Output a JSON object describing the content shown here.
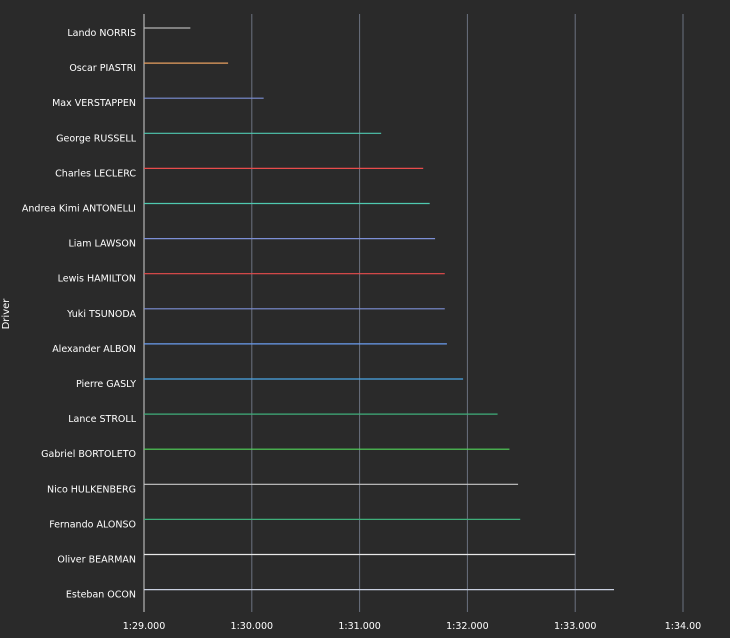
{
  "chart_data": {
    "type": "bar",
    "orientation": "horizontal",
    "ylabel": "Driver",
    "xlabel": "",
    "xlim_seconds": [
      89.0,
      94.0
    ],
    "x_ticks": [
      {
        "value": 89.0,
        "label": "1:29.000"
      },
      {
        "value": 90.0,
        "label": "1:30.000"
      },
      {
        "value": 91.0,
        "label": "1:31.000"
      },
      {
        "value": 92.0,
        "label": "1:32.000"
      },
      {
        "value": 93.0,
        "label": "1:33.000"
      },
      {
        "value": 94.0,
        "label": "1:34.00"
      }
    ],
    "grid": true,
    "categories": [
      "Lando NORRIS",
      "Oscar PIASTRI",
      "Max VERSTAPPEN",
      "George RUSSELL",
      "Charles LECLERC",
      "Andrea Kimi ANTONELLI",
      "Liam LAWSON",
      "Lewis HAMILTON",
      "Yuki TSUNODA",
      "Alexander ALBON",
      "Pierre GASLY",
      "Lance STROLL",
      "Gabriel BORTOLETO",
      "Nico HULKENBERG",
      "Fernando ALONSO",
      "Oliver BEARMAN",
      "Esteban OCON"
    ],
    "values_seconds": [
      89.43,
      89.78,
      90.11,
      91.2,
      91.59,
      91.65,
      91.7,
      91.79,
      91.79,
      91.81,
      91.96,
      92.28,
      92.39,
      92.47,
      92.49,
      93.0,
      93.36
    ],
    "colors": [
      "#b5b5b5",
      "#e8a060",
      "#7d8fd6",
      "#4fc9b0",
      "#e84c4c",
      "#4fc9b0",
      "#7d8fd6",
      "#e84c4c",
      "#7d8fd6",
      "#6a9cf0",
      "#4aa6e8",
      "#3fae7a",
      "#52d65a",
      "#c8c8c8",
      "#3fae7a",
      "#e8e8e8",
      "#c9d0e0"
    ]
  }
}
